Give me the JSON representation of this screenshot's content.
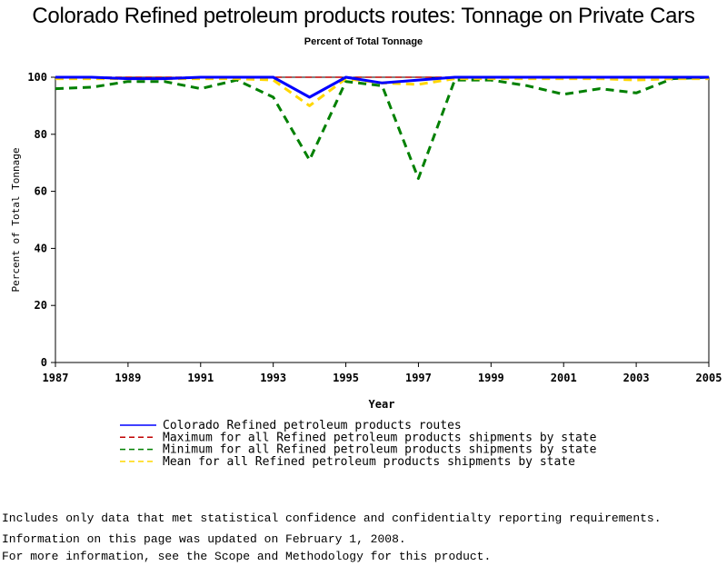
{
  "chart_data": {
    "type": "line",
    "title": "Colorado Refined petroleum products routes: Tonnage on Private Cars",
    "subtitle": "Percent of Total Tonnage",
    "xlabel": "Year",
    "ylabel": "Percent of Total Tonnage",
    "xlim": [
      1987,
      2005
    ],
    "ylim": [
      0,
      100
    ],
    "xticks": [
      "1987",
      "1989",
      "1991",
      "1993",
      "1995",
      "1997",
      "1999",
      "2001",
      "2003",
      "2005"
    ],
    "yticks": [
      "0",
      "20",
      "40",
      "60",
      "80",
      "100"
    ],
    "grid": false,
    "legend_position": "bottom",
    "x": [
      1987,
      1988,
      1989,
      1990,
      1991,
      1992,
      1993,
      1994,
      1995,
      1996,
      1997,
      1998,
      1999,
      2000,
      2001,
      2002,
      2003,
      2004,
      2005
    ],
    "series": [
      {
        "name": "Colorado Refined petroleum products routes",
        "color": "#0000ff",
        "style": "solid",
        "values": [
          100,
          100,
          99.5,
          99.5,
          100,
          100,
          100,
          93,
          100,
          98,
          99,
          100,
          100,
          100,
          100,
          100,
          100,
          100,
          100
        ]
      },
      {
        "name": "Maximum for all Refined petroleum products shipments by state",
        "color": "#c00000",
        "style": "dashed",
        "values": [
          100,
          100,
          100,
          100,
          100,
          100,
          100,
          100,
          100,
          100,
          100,
          100,
          100,
          100,
          100,
          100,
          100,
          100,
          100
        ]
      },
      {
        "name": "Minimum for all Refined petroleum products shipments by state",
        "color": "#008000",
        "style": "dashed",
        "values": [
          96,
          96.5,
          98.5,
          98.5,
          96,
          99,
          93,
          71,
          98.5,
          97,
          64.5,
          99,
          99,
          97,
          94,
          96,
          94.5,
          99.5,
          100
        ]
      },
      {
        "name": "Mean for all Refined petroleum products shipments by state",
        "color": "#ffd700",
        "style": "dashed",
        "values": [
          99.5,
          99.5,
          99.5,
          99.5,
          99.5,
          99.5,
          99,
          90,
          99.5,
          98,
          97.5,
          99.5,
          99.5,
          99.5,
          99.5,
          99.5,
          99,
          99.5,
          99.5
        ]
      }
    ]
  },
  "footnotes": [
    "Includes only data that met statistical confidence and confidentialty reporting requirements.",
    "For more information, see the Scope and Methodology for this product."
  ],
  "updated_note": "Information on this page was updated on February 1, 2008."
}
